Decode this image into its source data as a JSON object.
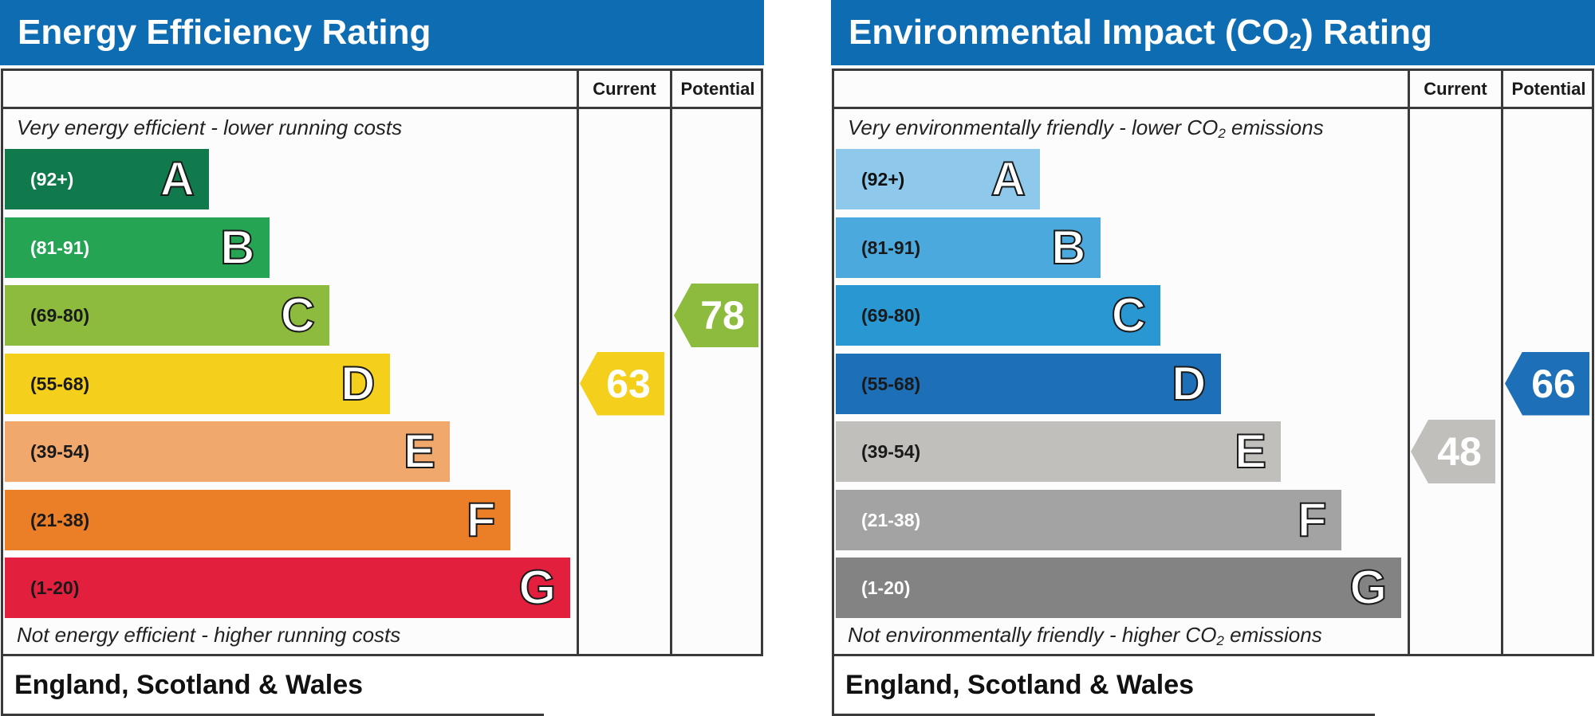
{
  "chart_data": [
    {
      "type": "bar",
      "title": "Energy Efficiency Rating",
      "columns": [
        "Current",
        "Potential"
      ],
      "top_note": "Very energy efficient - lower running costs",
      "bottom_note": "Not energy efficient - higher running costs",
      "footer": "England, Scotland & Wales",
      "bands": [
        {
          "letter": "A",
          "range": "(92+)",
          "min": 92,
          "max": 100,
          "color": "#117a4c",
          "text_color": "#ffffff"
        },
        {
          "letter": "B",
          "range": "(81-91)",
          "min": 81,
          "max": 91,
          "color": "#25a554",
          "text_color": "#ffffff"
        },
        {
          "letter": "C",
          "range": "(69-80)",
          "min": 69,
          "max": 80,
          "color": "#8dbb3d",
          "text_color": "#1a1a1a"
        },
        {
          "letter": "D",
          "range": "(55-68)",
          "min": 55,
          "max": 68,
          "color": "#f4cf1c",
          "text_color": "#1a1a1a"
        },
        {
          "letter": "E",
          "range": "(39-54)",
          "min": 39,
          "max": 54,
          "color": "#f0a86d",
          "text_color": "#1a1a1a"
        },
        {
          "letter": "F",
          "range": "(21-38)",
          "min": 21,
          "max": 38,
          "color": "#eb7f28",
          "text_color": "#1a1a1a"
        },
        {
          "letter": "G",
          "range": "(1-20)",
          "min": 1,
          "max": 20,
          "color": "#e21f3d",
          "text_color": "#1a1a1a"
        }
      ],
      "current": {
        "value": 63,
        "band": "D",
        "color": "#f4cf1c"
      },
      "potential": {
        "value": 78,
        "band": "C",
        "color": "#8dbb3d"
      }
    },
    {
      "type": "bar",
      "title_main": "Environmental Impact (CO",
      "title_sub": "2",
      "title_end": ") Rating",
      "columns": [
        "Current",
        "Potential"
      ],
      "top_note": {
        "main": "Very environmentally friendly - lower CO",
        "sub": "2",
        "end": " emissions"
      },
      "bottom_note": {
        "main": "Not environmentally friendly - higher CO",
        "sub": "2",
        "end": " emissions"
      },
      "footer": "England, Scotland & Wales",
      "bands": [
        {
          "letter": "A",
          "range": "(92+)",
          "min": 92,
          "max": 100,
          "color": "#8ec9ec",
          "text_color": "#111111"
        },
        {
          "letter": "B",
          "range": "(81-91)",
          "min": 81,
          "max": 91,
          "color": "#4ba9de",
          "text_color": "#1a1a1a"
        },
        {
          "letter": "C",
          "range": "(69-80)",
          "min": 69,
          "max": 80,
          "color": "#2998d2",
          "text_color": "#1a1a1a"
        },
        {
          "letter": "D",
          "range": "(55-68)",
          "min": 55,
          "max": 68,
          "color": "#1d6fb7",
          "text_color": "#1a1a1a"
        },
        {
          "letter": "E",
          "range": "(39-54)",
          "min": 39,
          "max": 54,
          "color": "#c1bfbc",
          "text_color": "#1a1a1a"
        },
        {
          "letter": "F",
          "range": "(21-38)",
          "min": 21,
          "max": 38,
          "color": "#a3a3a3",
          "text_color": "#ffffff"
        },
        {
          "letter": "G",
          "range": "(1-20)",
          "min": 1,
          "max": 20,
          "color": "#838383",
          "text_color": "#ffffff"
        }
      ],
      "current": {
        "value": 48,
        "band": "E",
        "color": "#c1bfbc"
      },
      "potential": {
        "value": 66,
        "band": "D",
        "color": "#1d6fb7"
      }
    }
  ]
}
